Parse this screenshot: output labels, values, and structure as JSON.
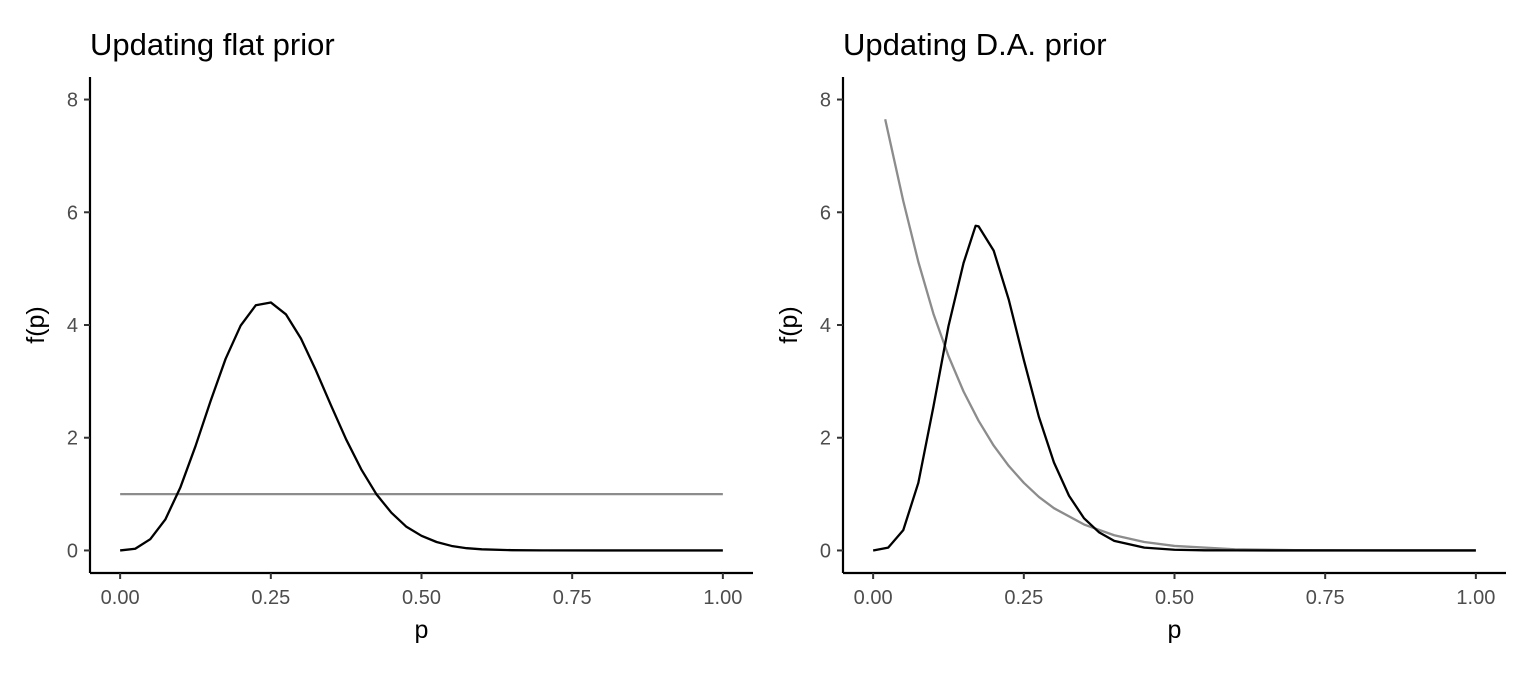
{
  "chart_data": [
    {
      "type": "line",
      "title": "Updating flat prior",
      "xlabel": "p",
      "ylabel": "f(p)",
      "xlim": [
        -0.05,
        1.05
      ],
      "ylim": [
        -0.4,
        8.4
      ],
      "xticks": [
        0,
        0.25,
        0.5,
        0.75,
        1
      ],
      "xtick_labels": [
        "0.00",
        "0.25",
        "0.50",
        "0.75",
        "1.00"
      ],
      "yticks": [
        0,
        2,
        4,
        6,
        8
      ],
      "ytick_labels": [
        "0",
        "2",
        "4",
        "6",
        "8"
      ],
      "grid": false,
      "series": [
        {
          "color": "#8c8c8c",
          "x": [
            0.0,
            1.0
          ],
          "y": [
            1.0,
            1.0
          ]
        },
        {
          "color": "#000000",
          "x": [
            0.0,
            0.025,
            0.05,
            0.075,
            0.1,
            0.125,
            0.15,
            0.175,
            0.2,
            0.225,
            0.25,
            0.275,
            0.3,
            0.325,
            0.35,
            0.375,
            0.4,
            0.425,
            0.45,
            0.475,
            0.5,
            0.525,
            0.55,
            0.575,
            0.6,
            0.65,
            0.7,
            0.8,
            0.9,
            1.0
          ],
          "y": [
            0.0,
            0.03,
            0.2,
            0.55,
            1.12,
            1.85,
            2.65,
            3.4,
            3.99,
            4.35,
            4.4,
            4.19,
            3.76,
            3.19,
            2.57,
            1.97,
            1.44,
            1.0,
            0.67,
            0.42,
            0.26,
            0.15,
            0.08,
            0.04,
            0.02,
            0.005,
            0.001,
            0.0,
            0.0,
            0.0
          ]
        }
      ]
    },
    {
      "type": "line",
      "title": "Updating D.A. prior",
      "xlabel": "p",
      "ylabel": "f(p)",
      "xlim": [
        -0.05,
        1.05
      ],
      "ylim": [
        -0.4,
        8.4
      ],
      "xticks": [
        0,
        0.25,
        0.5,
        0.75,
        1
      ],
      "xtick_labels": [
        "0.00",
        "0.25",
        "0.50",
        "0.75",
        "1.00"
      ],
      "yticks": [
        0,
        2,
        4,
        6,
        8
      ],
      "ytick_labels": [
        "0",
        "2",
        "4",
        "6",
        "8"
      ],
      "grid": false,
      "series": [
        {
          "color": "#8c8c8c",
          "x": [
            0.02,
            0.05,
            0.075,
            0.1,
            0.125,
            0.15,
            0.175,
            0.2,
            0.225,
            0.25,
            0.275,
            0.3,
            0.35,
            0.4,
            0.45,
            0.5,
            0.6,
            0.7,
            0.8,
            0.9,
            1.0
          ],
          "y": [
            7.65,
            6.2,
            5.12,
            4.2,
            3.45,
            2.82,
            2.3,
            1.86,
            1.5,
            1.2,
            0.95,
            0.75,
            0.46,
            0.27,
            0.15,
            0.08,
            0.02,
            0.005,
            0.001,
            0.0,
            0.0
          ]
        },
        {
          "color": "#000000",
          "x": [
            0.0,
            0.025,
            0.05,
            0.075,
            0.1,
            0.125,
            0.15,
            0.17,
            0.175,
            0.2,
            0.225,
            0.25,
            0.275,
            0.3,
            0.325,
            0.35,
            0.375,
            0.4,
            0.45,
            0.5,
            0.55,
            0.6,
            0.7,
            0.8,
            0.9,
            1.0
          ],
          "y": [
            0.0,
            0.05,
            0.36,
            1.2,
            2.55,
            3.98,
            5.1,
            5.76,
            5.75,
            5.32,
            4.45,
            3.38,
            2.37,
            1.56,
            0.97,
            0.57,
            0.32,
            0.17,
            0.05,
            0.012,
            0.003,
            0.001,
            0.0,
            0.0,
            0.0,
            0.0
          ]
        }
      ]
    }
  ]
}
